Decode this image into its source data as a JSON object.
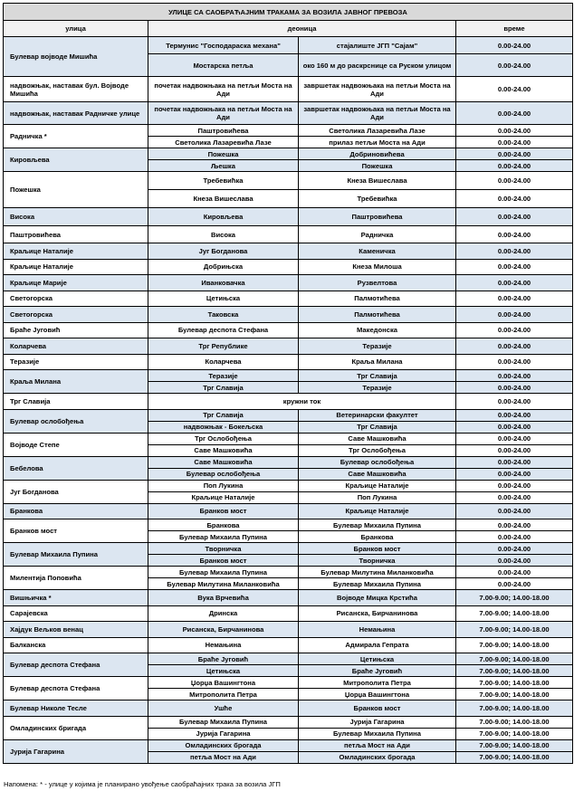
{
  "title": "УЛИЦЕ СА САОБРАЋАЈНИМ ТРАКАМА ЗА ВОЗИЛА ЈАВНОГ ПРЕВОЗА",
  "headers": {
    "street": "улица",
    "section": "деоница",
    "time": "време"
  },
  "colors": {
    "shaded": "#dce6f1",
    "title_bg": "#d9d9d9"
  },
  "groups": [
    {
      "street": "Булевар војводе Мишића",
      "shaded": true,
      "rows": [
        {
          "from": "Термунис \"Господараска механа\"",
          "to": "стајалиште ЈГП \"Сајам\"",
          "time": "0.00-24.00"
        },
        {
          "from": "Мостарска петља",
          "to": "око 160 м до раскрснице са Руском улицом",
          "time": "0.00-24.00"
        }
      ]
    },
    {
      "street": "надвожњак, наставак бул. Војводе Мишића",
      "shaded": false,
      "rows": [
        {
          "from": "почетак надвожњака на петљи Моста на Ади",
          "to": "завршетак надвожњака на петљи Моста на Ади",
          "time": "0.00-24.00"
        }
      ]
    },
    {
      "street": "надвожњак, наставак Радничке улице",
      "shaded": true,
      "rows": [
        {
          "from": "почетак надвожњака на петљи Моста на Ади",
          "to": "завршетак надвожњака на петљи Моста на Ади",
          "time": "0.00-24.00"
        }
      ]
    },
    {
      "street": "Радничка *",
      "shaded": false,
      "rows": [
        {
          "from": "Паштровићева",
          "to": "Светолика Лазаревића Лазе",
          "time": "0.00-24.00"
        },
        {
          "from": "Светолика Лазаревића Лазе",
          "to": "прилаз петљи Моста на Ади",
          "time": "0.00-24.00"
        }
      ]
    },
    {
      "street": "Кировљева",
      "shaded": true,
      "rows": [
        {
          "from": "Пожешка",
          "to": "Добриновићева",
          "time": "0.00-24.00"
        },
        {
          "from": "Љешка",
          "to": "Пожешка",
          "time": "0.00-24.00"
        }
      ]
    },
    {
      "street": "Пожешка",
      "shaded": false,
      "rows": [
        {
          "from": "Требевићка",
          "to": "Кнеза Вишеслава",
          "time": "0.00-24.00"
        },
        {
          "from": "Кнеза Вишеслава",
          "to": "Требевићка",
          "time": "0.00-24.00"
        }
      ]
    },
    {
      "street": "Висока",
      "shaded": true,
      "rows": [
        {
          "from": "Кировљева",
          "to": "Паштровићева",
          "time": "0.00-24.00"
        }
      ]
    },
    {
      "street": "Паштровићева",
      "shaded": false,
      "rows": [
        {
          "from": "Висока",
          "to": "Радничка",
          "time": "0.00-24.00"
        }
      ]
    },
    {
      "street": "Краљице Наталије",
      "shaded": true,
      "rows": [
        {
          "from": "Југ Богданова",
          "to": "Каменичка",
          "time": "0.00-24.00"
        }
      ]
    },
    {
      "street": "Краљице Наталије",
      "shaded": false,
      "rows": [
        {
          "from": "Добрињска",
          "to": "Кнеза Милоша",
          "time": "0.00-24.00"
        }
      ]
    },
    {
      "street": "Краљице Марије",
      "shaded": true,
      "rows": [
        {
          "from": "Иванковачка",
          "to": "Рузвелтова",
          "time": "0.00-24.00"
        }
      ]
    },
    {
      "street": "Светогорска",
      "shaded": false,
      "rows": [
        {
          "from": "Цетињска",
          "to": "Палмотићева",
          "time": "0.00-24.00"
        }
      ]
    },
    {
      "street": "Светогорска",
      "shaded": true,
      "rows": [
        {
          "from": "Таковска",
          "to": "Палмотићева",
          "time": "0.00-24.00"
        }
      ]
    },
    {
      "street": "Браће Југовић",
      "shaded": false,
      "rows": [
        {
          "from": "Булевар деспота Стефана",
          "to": "Македонска",
          "time": "0.00-24.00"
        }
      ]
    },
    {
      "street": "Коларчева",
      "shaded": true,
      "rows": [
        {
          "from": "Трг Републике",
          "to": "Теразије",
          "time": "0.00-24.00"
        }
      ]
    },
    {
      "street": "Теразије",
      "shaded": false,
      "rows": [
        {
          "from": "Коларчева",
          "to": "Краља Милана",
          "time": "0.00-24.00"
        }
      ]
    },
    {
      "street": "Краља Милана",
      "shaded": true,
      "rows": [
        {
          "from": "Теразије",
          "to": "Трг Славија",
          "time": "0.00-24.00"
        },
        {
          "from": "Трг Славија",
          "to": "Теразије",
          "time": "0.00-24.00"
        }
      ]
    },
    {
      "street": "Трг Славија",
      "shaded": false,
      "rows": [
        {
          "span": "кружни ток",
          "time": "0.00-24.00"
        }
      ]
    },
    {
      "street": "Булевар ослобођења",
      "shaded": true,
      "rows": [
        {
          "from": "Трг Славија",
          "to": "Ветеринарски факултет",
          "time": "0.00-24.00"
        },
        {
          "from": "надвожњак - Бокељска",
          "to": "Трг Славија",
          "time": "0.00-24.00"
        }
      ]
    },
    {
      "street": "Војводе Степе",
      "shaded": false,
      "rows": [
        {
          "from": "Трг Ослобођења",
          "to": "Саве Машковића",
          "time": "0.00-24.00"
        },
        {
          "from": "Саве Машковића",
          "to": "Трг Ослобођења",
          "time": "0.00-24.00"
        }
      ]
    },
    {
      "street": "Бебелова",
      "shaded": true,
      "rows": [
        {
          "from": "Саве Машковића",
          "to": "Булевар ослобођења",
          "time": "0.00-24.00"
        },
        {
          "from": "Булевар ослобођења",
          "to": "Саве Машковића",
          "time": "0.00-24.00"
        }
      ]
    },
    {
      "street": "Југ Богданова",
      "shaded": false,
      "rows": [
        {
          "from": "Поп Лукина",
          "to": "Краљице Наталије",
          "time": "0.00-24.00"
        },
        {
          "from": "Краљице Наталије",
          "to": "Поп Лукина",
          "time": "0.00-24.00"
        }
      ]
    },
    {
      "street": "Бранкова",
      "shaded": true,
      "rows": [
        {
          "from": "Бранков мост",
          "to": "Краљице Наталије",
          "time": "0.00-24.00"
        }
      ]
    },
    {
      "street": "Бранков мост",
      "shaded": false,
      "rows": [
        {
          "from": "Бранкова",
          "to": "Булевар Михаила Пупина",
          "time": "0.00-24.00"
        },
        {
          "from": "Булевар Михаила Пупина",
          "to": "Бранкова",
          "time": "0.00-24.00"
        }
      ]
    },
    {
      "street": "Булевар Михаила Пупина",
      "shaded": true,
      "rows": [
        {
          "from": "Творничка",
          "to": "Бранков мост",
          "time": "0.00-24.00"
        },
        {
          "from": "Бранков мост",
          "to": "Творничка",
          "time": "0.00-24.00"
        }
      ]
    },
    {
      "street": "Милентија Поповића",
      "shaded": false,
      "rows": [
        {
          "from": "Булевар Михаила Пупина",
          "to": "Булевар Милутина Миланковића",
          "time": "0.00-24.00"
        },
        {
          "from": "Булевар Милутина Миланковића",
          "to": "Булевар Михаила Пупина",
          "time": "0.00-24.00"
        }
      ]
    },
    {
      "street": "Вишњичка *",
      "shaded": true,
      "rows": [
        {
          "from": "Вука Врчевића",
          "to": "Војводе Мицка Крстића",
          "time": "7.00-9.00;  14.00-18.00"
        }
      ]
    },
    {
      "street": "Сарајевска",
      "shaded": false,
      "rows": [
        {
          "from": "Дринска",
          "to": "Рисанска, Бирчанинова",
          "time": "7.00-9.00;  14.00-18.00"
        }
      ]
    },
    {
      "street": "Хајдук Вељков венац",
      "shaded": true,
      "rows": [
        {
          "from": "Рисанска, Бирчанинова",
          "to": "Немањина",
          "time": "7.00-9.00;  14.00-18.00"
        }
      ]
    },
    {
      "street": "Балканска",
      "shaded": false,
      "rows": [
        {
          "from": "Немањина",
          "to": "Адмирала Гепрата",
          "time": "7.00-9.00;  14.00-18.00"
        }
      ]
    },
    {
      "street": "Булевар деспота Стефана",
      "shaded": true,
      "rows": [
        {
          "from": "Браће Југовић",
          "to": "Цетињска",
          "time": "7.00-9.00;  14.00-18.00"
        },
        {
          "from": "Цетињска",
          "to": "Браће Југовић",
          "time": "7.00-9.00;  14.00-18.00"
        }
      ]
    },
    {
      "street": "Булевар деспота Стефана",
      "shaded": false,
      "rows": [
        {
          "from": "Џорџа Вашингтона",
          "to": "Митрополита Петра",
          "time": "7.00-9.00;  14.00-18.00"
        },
        {
          "from": "Митрополита Петра",
          "to": "Џорџа Вашингтона",
          "time": "7.00-9.00;  14.00-18.00"
        }
      ]
    },
    {
      "street": "Булевар Николе Тесле",
      "shaded": true,
      "rows": [
        {
          "from": "Ушће",
          "to": "Бранков мост",
          "time": "7.00-9.00;  14.00-18.00"
        }
      ]
    },
    {
      "street": "Омладинских бригада",
      "shaded": false,
      "rows": [
        {
          "from": "Булевар Михаила Пупина",
          "to": "Јурија Гагарина",
          "time": "7.00-9.00;  14.00-18.00"
        },
        {
          "from": "Јурија Гагарина",
          "to": "Булевар Михаила Пупина",
          "time": "7.00-9.00;  14.00-18.00"
        }
      ]
    },
    {
      "street": "Јурија Гагарина",
      "shaded": true,
      "rows": [
        {
          "from": "Омладинских брогада",
          "to": "петља Мост на Ади",
          "time": "7.00-9.00;  14.00-18.00"
        },
        {
          "from": "петља Мост на Ади",
          "to": "Омладинских брогада",
          "time": "7.00-9.00;  14.00-18.00"
        }
      ]
    }
  ],
  "note": "Напомена: * - улице у којима  је планирано увођење саобраћајних трака за возила ЈГП"
}
